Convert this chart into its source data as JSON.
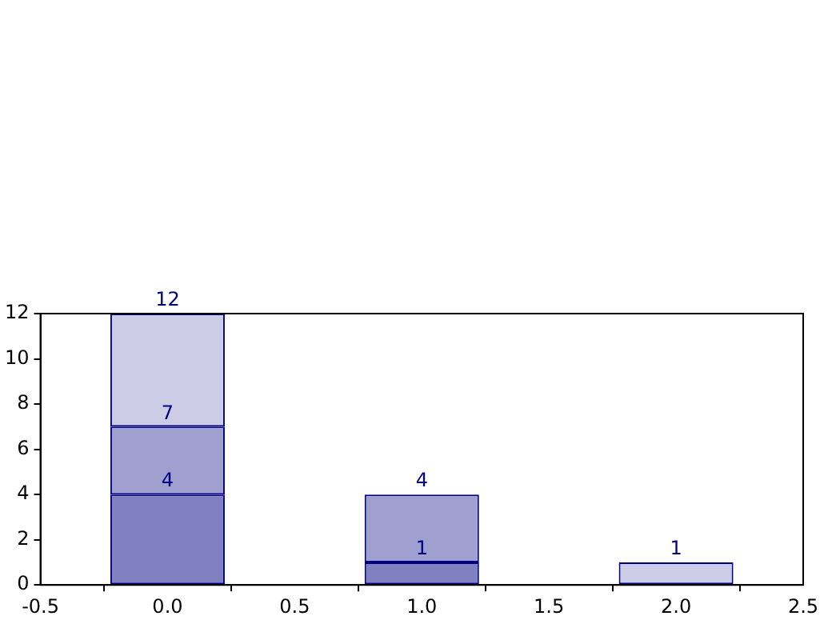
{
  "chart_data": {
    "type": "bar",
    "stacked": true,
    "x": [
      0,
      1,
      2
    ],
    "series": [
      {
        "color": "#8080c0",
        "values": [
          4,
          1,
          null
        ]
      },
      {
        "color": "#a0a0d0",
        "values": [
          3,
          3,
          null
        ]
      },
      {
        "color": "#ccccE6",
        "values": [
          5,
          null,
          1
        ]
      }
    ],
    "annotations": [
      {
        "text": "4",
        "x": 0,
        "y": 4
      },
      {
        "text": "7",
        "x": 0,
        "y": 7
      },
      {
        "text": "12",
        "x": 0,
        "y": 12
      },
      {
        "text": "1",
        "x": 1,
        "y": 1
      },
      {
        "text": "4",
        "x": 1,
        "y": 4
      },
      {
        "text": "1",
        "x": 2,
        "y": 1
      }
    ],
    "xlim": [
      -0.5,
      2.5
    ],
    "xticks": [
      {
        "value": -0.5,
        "label": "-0.5"
      },
      {
        "value": 0,
        "label": "0.0"
      },
      {
        "value": 0.5,
        "label": "0.5"
      },
      {
        "value": 1,
        "label": "1.0"
      },
      {
        "value": 1.5,
        "label": "1.5"
      },
      {
        "value": 2,
        "label": "2.0"
      },
      {
        "value": 2.5,
        "label": "2.5"
      }
    ],
    "ylim": [
      0,
      12
    ],
    "yticks": [
      0,
      2,
      4,
      6,
      8,
      10,
      12
    ],
    "grid": false,
    "legend": false
  }
}
